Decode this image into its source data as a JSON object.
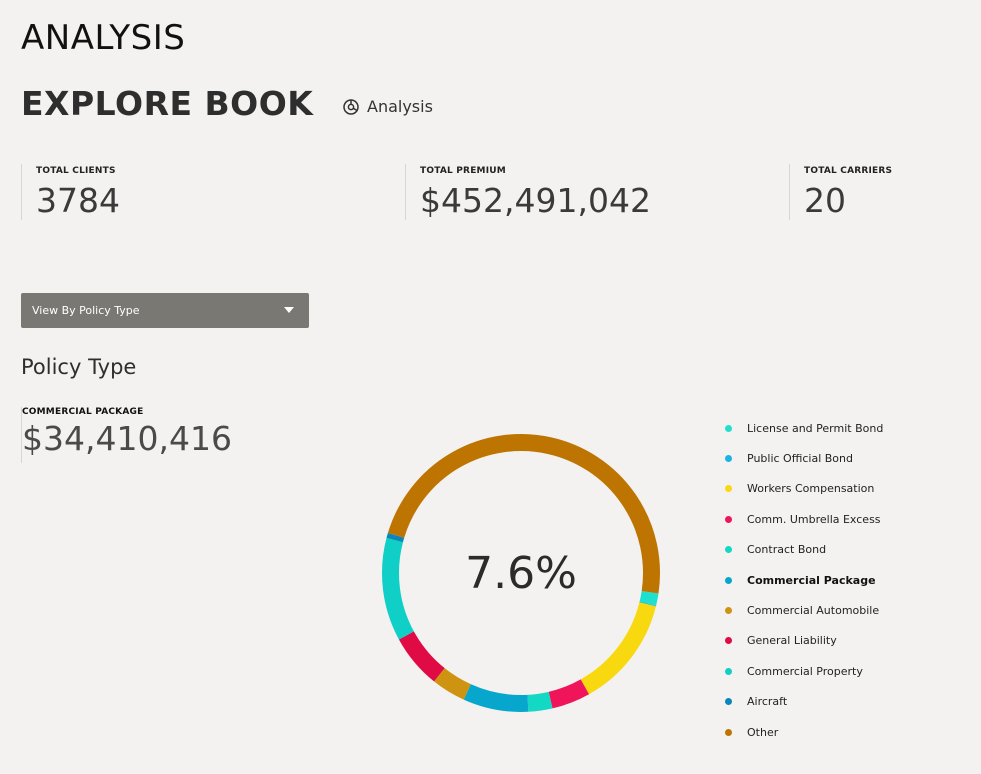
{
  "header": {
    "title": "ANALYSIS",
    "subtitle": "EXPLORE BOOK",
    "breadcrumb_icon": "chart-pie-icon",
    "breadcrumb_label": "Analysis"
  },
  "stats": [
    {
      "label": "TOTAL CLIENTS",
      "value": "3784"
    },
    {
      "label": "TOTAL PREMIUM",
      "value": "$452,491,042"
    },
    {
      "label": "TOTAL CARRIERS",
      "value": "20"
    }
  ],
  "view_selector": {
    "selected": "View By Policy Type"
  },
  "section": {
    "title": "Policy Type"
  },
  "selected_segment": {
    "label": "COMMERCIAL PACKAGE",
    "value": "$34,410,416"
  },
  "chart_data": {
    "type": "pie",
    "style": "donut",
    "center_label": "7.6%",
    "categories": [
      "License and Permit Bond",
      "Public Official Bond",
      "Workers Compensation",
      "Comm. Umbrella Excess",
      "Contract Bond",
      "Commercial Package",
      "Commercial Automobile",
      "General Liability",
      "Commercial Property",
      "Aircraft",
      "Other"
    ],
    "values": [
      1.4,
      0.1,
      13.0,
      4.5,
      2.8,
      7.6,
      4.0,
      6.3,
      12.0,
      0.6,
      47.7
    ],
    "colors": [
      "#1fe0cf",
      "#1ab3e6",
      "#f8d80e",
      "#f0145a",
      "#12d8c4",
      "#06a6cd",
      "#cf9312",
      "#e00a45",
      "#0fcfc6",
      "#0b86b8",
      "#bd7400"
    ],
    "selected_index": 5
  }
}
